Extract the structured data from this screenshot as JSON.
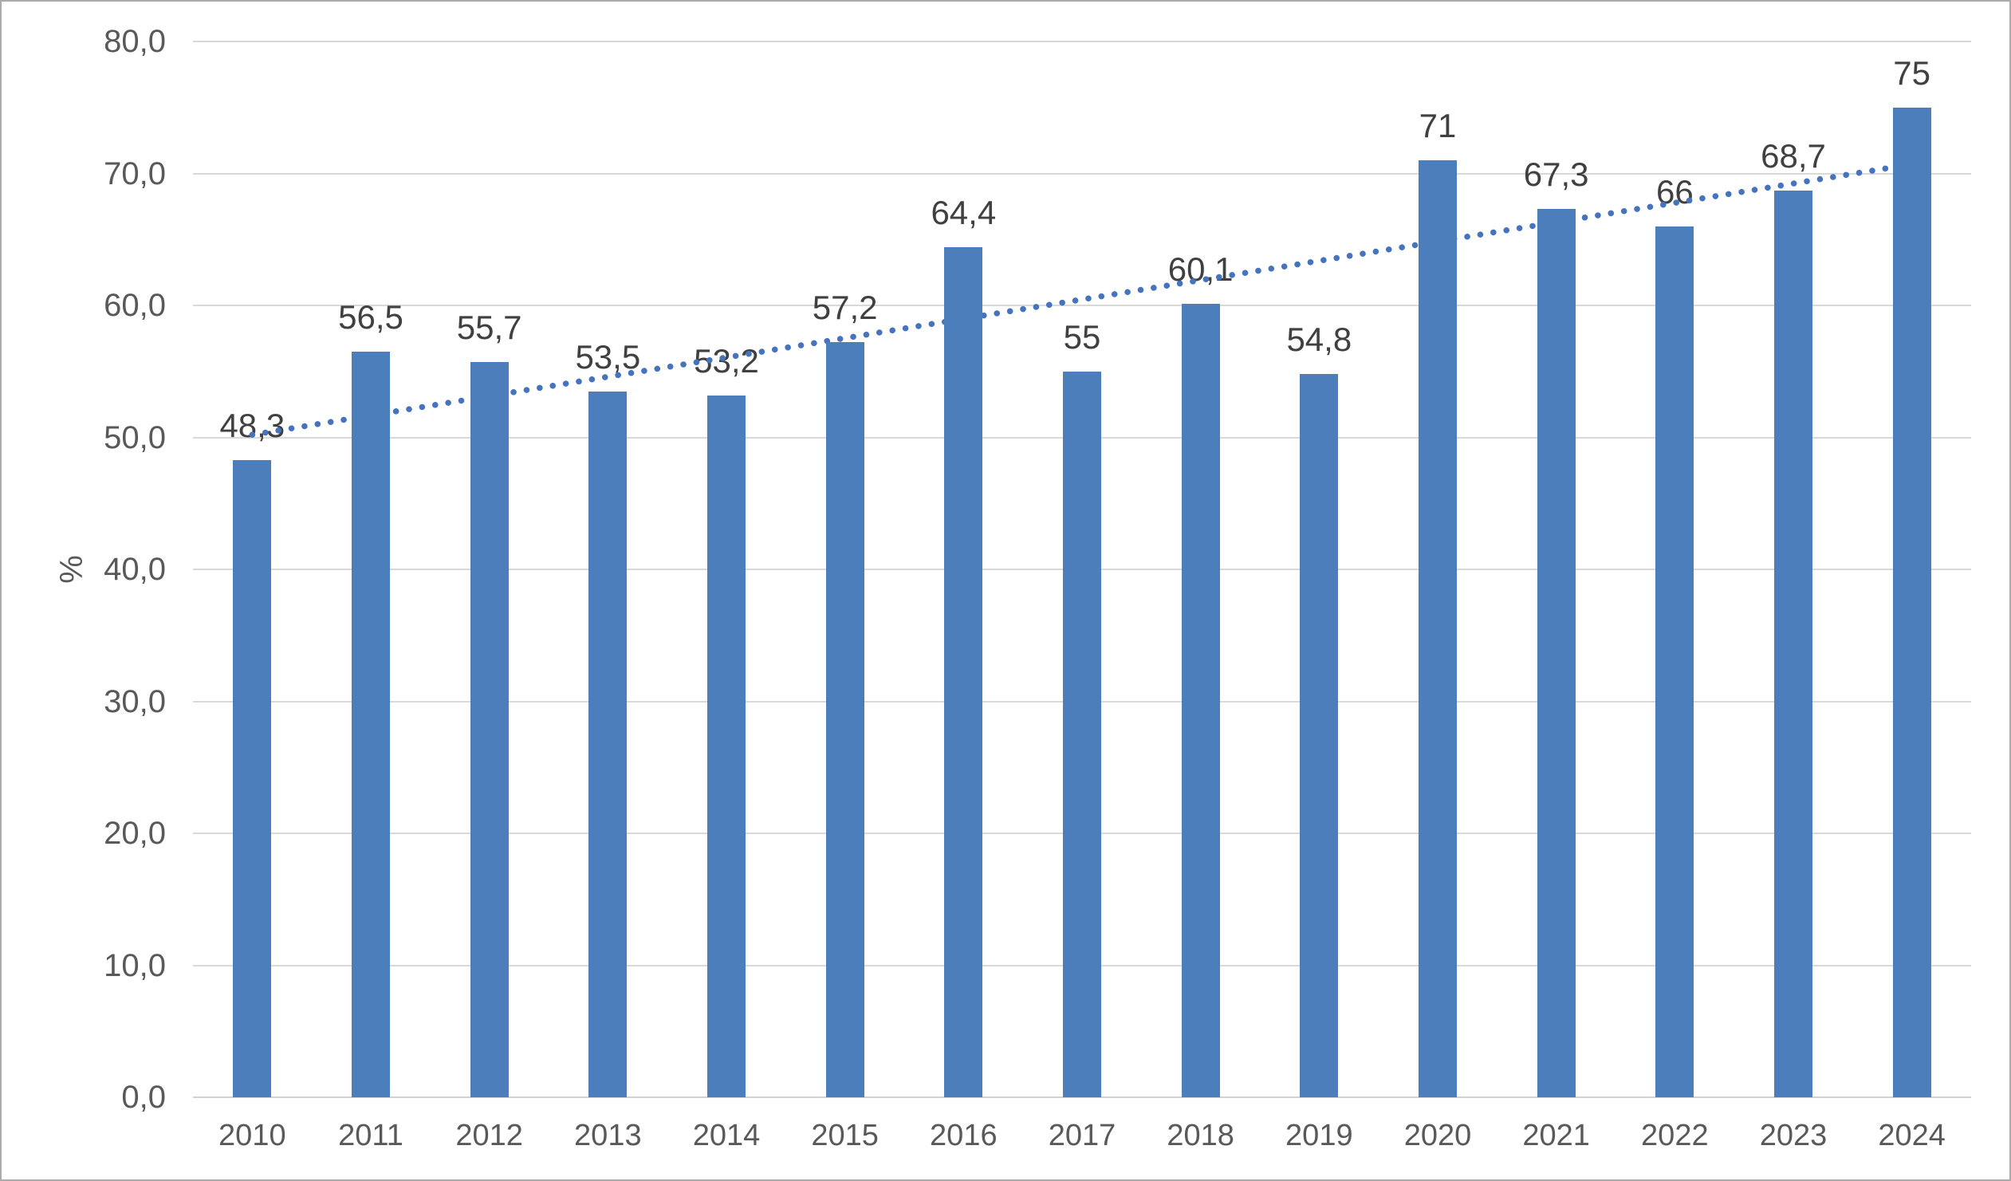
{
  "chart_data": {
    "type": "bar",
    "title": "",
    "xlabel": "",
    "ylabel": "%",
    "categories": [
      "2010",
      "2011",
      "2012",
      "2013",
      "2014",
      "2015",
      "2016",
      "2017",
      "2018",
      "2019",
      "2020",
      "2021",
      "2022",
      "2023",
      "2024"
    ],
    "values": [
      48.3,
      56.5,
      55.7,
      53.5,
      53.2,
      57.2,
      64.4,
      55,
      60.1,
      54.8,
      71,
      67.3,
      66,
      68.7,
      75
    ],
    "value_labels": [
      "48,3",
      "56,5",
      "55,7",
      "53,5",
      "53,2",
      "57,2",
      "64,4",
      "55",
      "60,1",
      "54,8",
      "71",
      "67,3",
      "66",
      "68,7",
      "75"
    ],
    "ylim": [
      0,
      80
    ],
    "ytick_step": 10,
    "ytick_labels": [
      "0,0",
      "10,0",
      "20,0",
      "30,0",
      "40,0",
      "50,0",
      "60,0",
      "70,0",
      "80,0"
    ],
    "grid": true,
    "legend": false,
    "bar_color": "#4d7ebc",
    "trendline": {
      "type": "linear",
      "style": "dotted",
      "color": "#4573bd",
      "start_value": 50.2,
      "end_value": 70.7
    }
  },
  "colors": {
    "grid": "#d9d9d9",
    "axis_line": "#d2d2d2",
    "tick_text": "#595959",
    "label_text": "#404040",
    "frame_border": "#ababab",
    "background": "#ffffff"
  }
}
